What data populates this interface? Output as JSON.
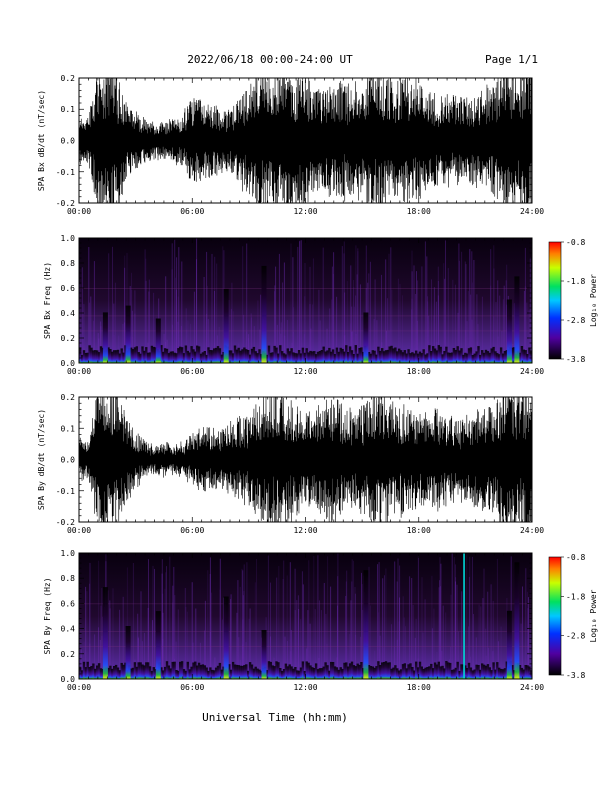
{
  "header": {
    "title": "2022/06/18  00:00-24:00 UT",
    "page": "Page 1/1"
  },
  "x_axis_title": "Universal Time (hh:mm)",
  "chart_data": [
    {
      "type": "line",
      "ylabel": "SPA Bx dB/dt (nT/sec)",
      "xlim": [
        0,
        24
      ],
      "ylim": [
        -0.2,
        0.2
      ],
      "x_ticks": [
        "00:00",
        "06:00",
        "12:00",
        "18:00",
        "24:00"
      ],
      "y_ticks": [
        "-0.2",
        "-0.1",
        "0.0",
        "0.1",
        "0.2"
      ],
      "envelope": {
        "hours": [
          0,
          0.5,
          1,
          1.5,
          2,
          2.5,
          3,
          3.5,
          4,
          4.5,
          5,
          5.5,
          6,
          6.5,
          7,
          7.5,
          8,
          8.5,
          9,
          9.5,
          10,
          10.5,
          11,
          11.5,
          12,
          12.5,
          13,
          13.5,
          14,
          14.5,
          15,
          15.5,
          16,
          16.5,
          17,
          17.5,
          18,
          18.5,
          19,
          19.5,
          20,
          20.5,
          21,
          21.5,
          22,
          22.5,
          23,
          23.5,
          24
        ],
        "amplitude": [
          0.07,
          0.06,
          0.2,
          0.2,
          0.2,
          0.1,
          0.08,
          0.06,
          0.05,
          0.05,
          0.06,
          0.07,
          0.12,
          0.11,
          0.1,
          0.09,
          0.08,
          0.12,
          0.15,
          0.18,
          0.2,
          0.2,
          0.2,
          0.2,
          0.18,
          0.14,
          0.13,
          0.16,
          0.17,
          0.15,
          0.17,
          0.2,
          0.18,
          0.16,
          0.17,
          0.18,
          0.16,
          0.14,
          0.12,
          0.13,
          0.12,
          0.11,
          0.12,
          0.14,
          0.16,
          0.2,
          0.2,
          0.2,
          0.2
        ]
      }
    },
    {
      "type": "heatmap",
      "ylabel": "SPA Bx Freq (Hz)",
      "xlim": [
        0,
        24
      ],
      "ylim": [
        0.0,
        1.0
      ],
      "x_ticks": [
        "00:00",
        "06:00",
        "12:00",
        "18:00",
        "24:00"
      ],
      "y_ticks": [
        "0.0",
        "0.2",
        "0.4",
        "0.6",
        "0.8",
        "1.0"
      ],
      "colorbar": {
        "label": "Log₁₀ Power",
        "ticks": [
          "-0.8",
          "-1.8",
          "-2.8",
          "-3.8"
        ],
        "range": [
          -3.8,
          -0.8
        ]
      },
      "bursts_hours": [
        1.4,
        2.6,
        4.2,
        7.8,
        9.8,
        15.2,
        22.8,
        23.2
      ]
    },
    {
      "type": "line",
      "ylabel": "SPA By dB/dt (nT/sec)",
      "xlim": [
        0,
        24
      ],
      "ylim": [
        -0.2,
        0.2
      ],
      "x_ticks": [
        "00:00",
        "06:00",
        "12:00",
        "18:00",
        "24:00"
      ],
      "y_ticks": [
        "-0.2",
        "-0.1",
        "0.0",
        "0.1",
        "0.2"
      ],
      "envelope": {
        "hours": [
          0,
          0.5,
          1,
          1.5,
          2,
          2.5,
          3,
          3.5,
          4,
          4.5,
          5,
          5.5,
          6,
          6.5,
          7,
          7.5,
          8,
          8.5,
          9,
          9.5,
          10,
          10.5,
          11,
          11.5,
          12,
          12.5,
          13,
          13.5,
          14,
          14.5,
          15,
          15.5,
          16,
          16.5,
          17,
          17.5,
          18,
          18.5,
          19,
          19.5,
          20,
          20.5,
          21,
          21.5,
          22,
          22.5,
          23,
          23.5,
          24
        ],
        "amplitude": [
          0.06,
          0.05,
          0.2,
          0.2,
          0.2,
          0.12,
          0.08,
          0.05,
          0.04,
          0.05,
          0.04,
          0.05,
          0.07,
          0.08,
          0.09,
          0.08,
          0.1,
          0.12,
          0.12,
          0.16,
          0.2,
          0.2,
          0.17,
          0.15,
          0.13,
          0.14,
          0.16,
          0.18,
          0.14,
          0.13,
          0.15,
          0.17,
          0.19,
          0.16,
          0.15,
          0.14,
          0.12,
          0.13,
          0.14,
          0.12,
          0.11,
          0.12,
          0.13,
          0.14,
          0.15,
          0.2,
          0.2,
          0.2,
          0.2
        ]
      }
    },
    {
      "type": "heatmap",
      "ylabel": "SPA By Freq (Hz)",
      "xlim": [
        0,
        24
      ],
      "ylim": [
        0.0,
        1.0
      ],
      "x_ticks": [
        "00:00",
        "06:00",
        "12:00",
        "18:00",
        "24:00"
      ],
      "y_ticks": [
        "0.0",
        "0.2",
        "0.4",
        "0.6",
        "0.8",
        "1.0"
      ],
      "colorbar": {
        "label": "Log₁₀ Power",
        "ticks": [
          "-0.8",
          "-1.8",
          "-2.8",
          "-3.8"
        ],
        "range": [
          -3.8,
          -0.8
        ]
      },
      "bursts_hours": [
        1.4,
        2.6,
        4.2,
        7.8,
        9.8,
        15.2,
        22.8,
        23.2
      ],
      "marker_hour": 20.4
    }
  ],
  "colors": {
    "line": "#000000",
    "background": "#ffffff",
    "marker": "#00d8d8"
  }
}
